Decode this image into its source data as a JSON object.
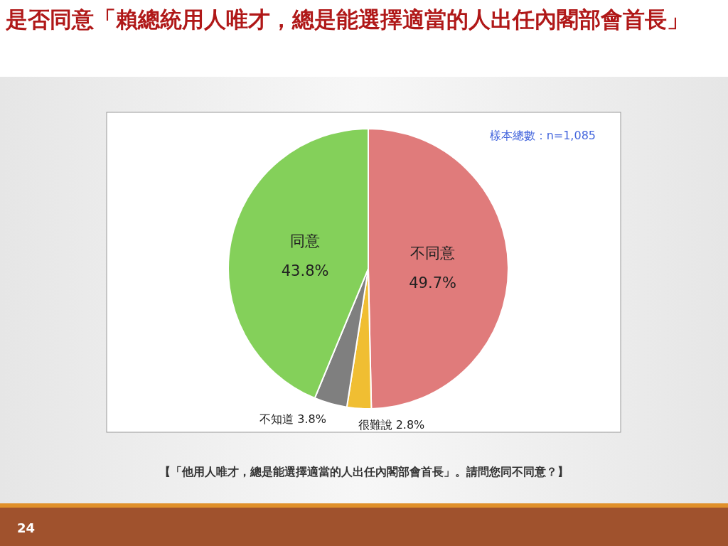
{
  "chart_data": {
    "type": "pie",
    "title": "是否同意「賴總統用人唯才，總是能選擇適當的人出任內閣部會首長」",
    "categories": [
      "不同意",
      "很難說",
      "不知道",
      "同意"
    ],
    "values": [
      49.7,
      2.8,
      3.8,
      43.8
    ],
    "colors": [
      "#e07b7b",
      "#f0be32",
      "#7f7f7f",
      "#84d05a"
    ],
    "value_labels": [
      "49.7%",
      "2.8%",
      "3.8%",
      "43.8%"
    ],
    "annotations": [
      "樣本總數：n=1,085",
      "【「他用人唯才，總是能選擇適當的人出任內閣部會首長」。請問您同不同意？】",
      "24"
    ]
  }
}
